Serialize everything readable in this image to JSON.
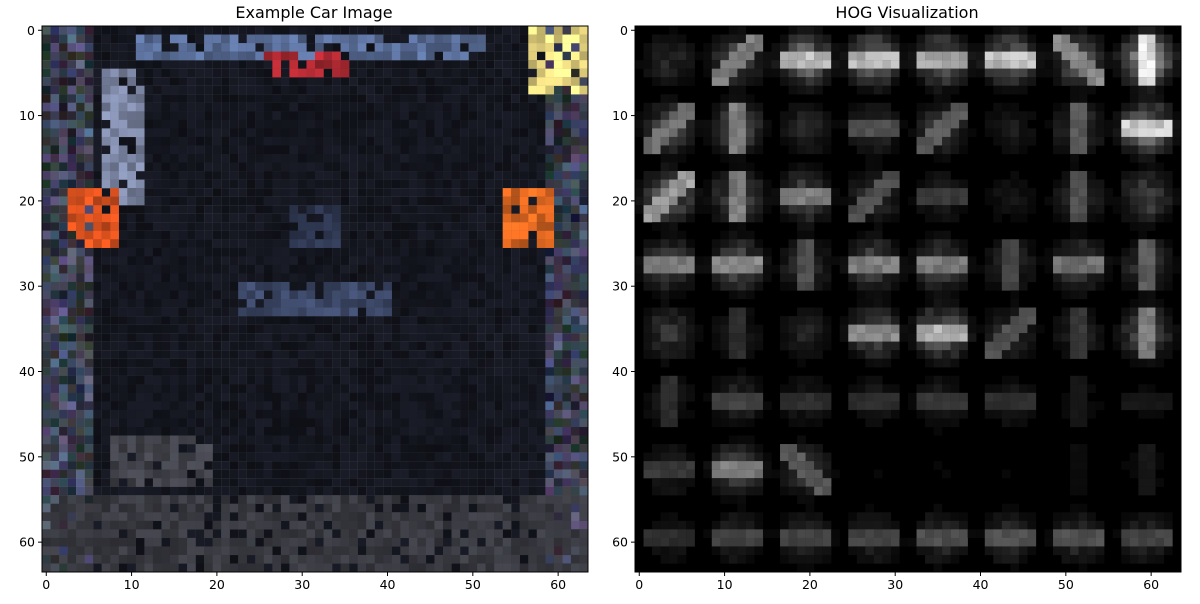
{
  "chart_data": [
    {
      "type": "image",
      "title": "Example Car Image",
      "xlabel": "",
      "ylabel": "",
      "xlim": [
        -0.5,
        63.5
      ],
      "ylim": [
        63.5,
        -0.5
      ],
      "xticks": [
        0,
        10,
        20,
        30,
        40,
        50,
        60
      ],
      "yticks": [
        0,
        10,
        20,
        30,
        40,
        50,
        60
      ],
      "grid": false,
      "image_size": [
        64,
        64
      ],
      "background_color": "#14161f",
      "features": [
        {
          "label": "car-roof-light-streak",
          "x0": 11,
          "y0": 1,
          "x1": 51,
          "y1": 3,
          "color": "#5a6f9a"
        },
        {
          "label": "brake-light-strip",
          "x0": 26,
          "y0": 3,
          "x1": 35,
          "y1": 5,
          "color": "#b12a33"
        },
        {
          "label": "left-pillar-highlight",
          "x0": 7,
          "y0": 5,
          "x1": 11,
          "y1": 20,
          "color": "#7e88a6"
        },
        {
          "label": "left-tail-light",
          "x0": 3,
          "y0": 19,
          "x1": 8,
          "y1": 25,
          "color": "#e2541f"
        },
        {
          "label": "right-tail-light",
          "x0": 54,
          "y0": 19,
          "x1": 59,
          "y1": 25,
          "color": "#e46a22"
        },
        {
          "label": "license-plate",
          "x0": 23,
          "y0": 30,
          "x1": 40,
          "y1": 33,
          "color": "#3e4a6a"
        },
        {
          "label": "emblem",
          "x0": 29,
          "y0": 21,
          "x1": 34,
          "y1": 25,
          "color": "#2e3750"
        },
        {
          "label": "top-right-bright-patch",
          "x0": 57,
          "y0": 0,
          "x1": 63,
          "y1": 7,
          "color": "#f1de85"
        },
        {
          "label": "shadow-patch",
          "x0": 8,
          "y0": 48,
          "x1": 19,
          "y1": 53,
          "color": "#43444c"
        },
        {
          "label": "road-band",
          "x0": 0,
          "y0": 55,
          "x1": 63,
          "y1": 63,
          "color": "#3a3b42"
        }
      ]
    },
    {
      "type": "heatmap",
      "title": "HOG Visualization",
      "xlabel": "",
      "ylabel": "",
      "xlim": [
        -0.5,
        63.5
      ],
      "ylim": [
        63.5,
        -0.5
      ],
      "xticks": [
        0,
        10,
        20,
        30,
        40,
        50,
        60
      ],
      "yticks": [
        0,
        10,
        20,
        30,
        40,
        50,
        60
      ],
      "grid": false,
      "colormap": "gray",
      "cell_size": 8,
      "grid_cells": [
        8,
        8
      ],
      "cell_intensity": [
        [
          0.3,
          0.55,
          0.85,
          0.8,
          0.75,
          0.85,
          0.6,
          1.0
        ],
        [
          0.5,
          0.55,
          0.3,
          0.35,
          0.4,
          0.2,
          0.4,
          0.9
        ],
        [
          0.7,
          0.55,
          0.55,
          0.35,
          0.25,
          0.15,
          0.35,
          0.5
        ],
        [
          0.55,
          0.6,
          0.35,
          0.55,
          0.55,
          0.3,
          0.5,
          0.4
        ],
        [
          0.4,
          0.2,
          0.25,
          0.6,
          0.8,
          0.35,
          0.25,
          0.55
        ],
        [
          0.2,
          0.3,
          0.2,
          0.2,
          0.25,
          0.2,
          0.1,
          0.1
        ],
        [
          0.25,
          0.55,
          0.4,
          0.05,
          0.05,
          0.05,
          0.05,
          0.1
        ],
        [
          0.2,
          0.3,
          0.3,
          0.3,
          0.35,
          0.35,
          0.35,
          0.3
        ]
      ],
      "cell_orientation": [
        [
          "none",
          "diagonal-up",
          "horizontal",
          "horizontal",
          "horizontal",
          "horizontal",
          "diagonal-down",
          "vertical"
        ],
        [
          "diagonal-up",
          "vertical",
          "none",
          "horizontal",
          "diagonal-up",
          "none",
          "vertical",
          "horizontal"
        ],
        [
          "diagonal-up",
          "vertical",
          "horizontal",
          "diagonal-up",
          "horizontal",
          "none",
          "vertical",
          "none"
        ],
        [
          "horizontal",
          "horizontal",
          "vertical",
          "horizontal",
          "horizontal",
          "vertical",
          "horizontal",
          "vertical"
        ],
        [
          "none",
          "vertical",
          "none",
          "horizontal",
          "horizontal",
          "diagonal-up",
          "vertical",
          "vertical"
        ],
        [
          "vertical",
          "horizontal",
          "horizontal",
          "horizontal",
          "horizontal",
          "horizontal",
          "vertical",
          "horizontal"
        ],
        [
          "horizontal",
          "horizontal",
          "diagonal-down",
          "none",
          "none",
          "none",
          "vertical",
          "vertical"
        ],
        [
          "horizontal",
          "horizontal",
          "horizontal",
          "horizontal",
          "horizontal",
          "horizontal",
          "horizontal",
          "horizontal"
        ]
      ]
    }
  ]
}
